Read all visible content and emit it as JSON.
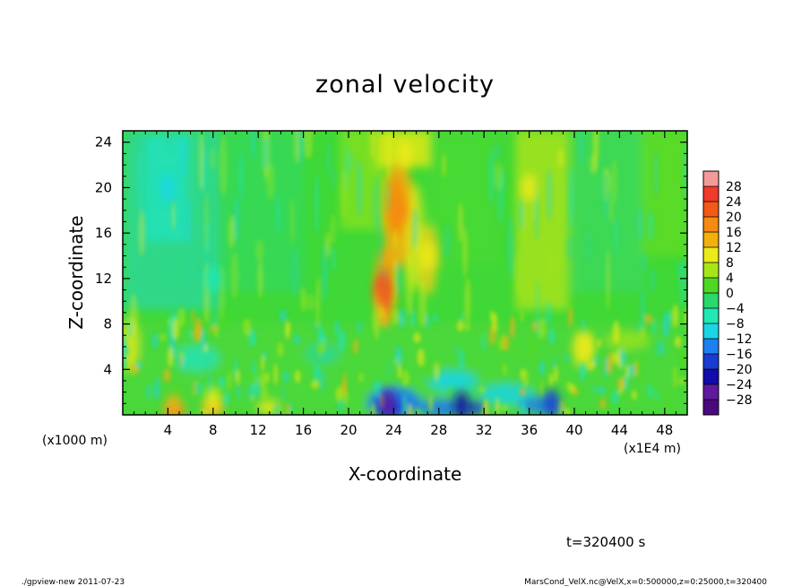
{
  "chart_data": {
    "type": "heatmap",
    "title": "zonal velocity",
    "xlabel": "X-coordinate",
    "ylabel": "Z-coordinate",
    "x_unit_label": "(x1E4 m)",
    "y_unit_label": "(x1000 m)",
    "xlim": [
      0,
      50
    ],
    "ylim": [
      0,
      25
    ],
    "x_ticks": [
      "4",
      "8",
      "12",
      "16",
      "20",
      "24",
      "28",
      "32",
      "36",
      "40",
      "44",
      "48"
    ],
    "y_ticks": [
      "4",
      "8",
      "12",
      "16",
      "20",
      "24"
    ],
    "colorbar": {
      "levels": [
        "28",
        "24",
        "20",
        "16",
        "12",
        "8",
        "4",
        "0",
        "−4",
        "−8",
        "−12",
        "−16",
        "−20",
        "−24",
        "−28"
      ],
      "colors": [
        "#f59a9a",
        "#f03a2a",
        "#f25a16",
        "#f78a12",
        "#f3b00c",
        "#ecea18",
        "#a6e618",
        "#4ed824",
        "#2bd86b",
        "#22e8b6",
        "#1ad6e3",
        "#1e80f0",
        "#1b3cd3",
        "#120ca8",
        "#5e1b9e",
        "#4a0a7e"
      ]
    },
    "features": [
      {
        "x": 24.5,
        "z": 18,
        "value": 20
      },
      {
        "x": 23,
        "z": 11,
        "value": 22
      },
      {
        "x": 27,
        "z": 14,
        "value": 12
      },
      {
        "x": 36,
        "z": 20,
        "value": 10
      },
      {
        "x": 25,
        "z": 23,
        "value": 9
      },
      {
        "x": 4,
        "z": 20,
        "value": -9
      },
      {
        "x": 8,
        "z": 12,
        "value": -5
      },
      {
        "x": 23.5,
        "z": 1,
        "value": -24
      },
      {
        "x": 30,
        "z": 0.8,
        "value": -20
      },
      {
        "x": 38,
        "z": 1,
        "value": -16
      },
      {
        "x": 4.5,
        "z": 0.6,
        "value": 16
      },
      {
        "x": 8,
        "z": 1.2,
        "value": 12
      },
      {
        "x": 41,
        "z": 6,
        "value": 10
      }
    ],
    "grid": false,
    "legend": "right colorbar"
  },
  "time_label": "t=320400 s",
  "footer": {
    "left": "./gpview-new   2011-07-23",
    "right": "MarsCond_VelX.nc@VelX,x=0:500000,z=0:25000,t=320400"
  }
}
